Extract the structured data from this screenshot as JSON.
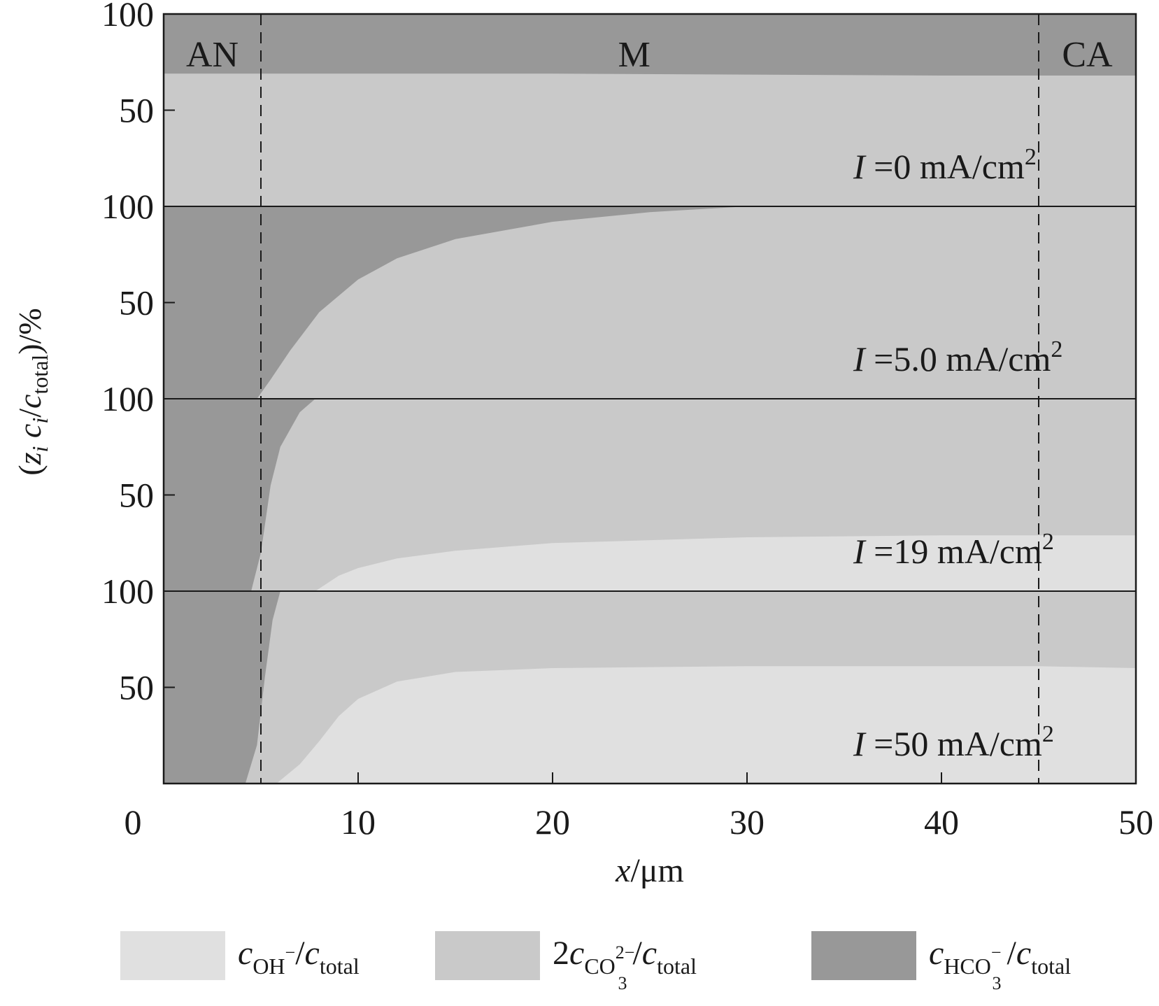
{
  "chart_data": {
    "type": "area",
    "stacked": true,
    "panels_stacked_vertically": true,
    "xlabel": "x/μm",
    "ylabel": "(z_i c_i/c_total)/%",
    "xlim": [
      0,
      50
    ],
    "ylim_per_panel": [
      0,
      100
    ],
    "x_ticks": [
      0,
      10,
      20,
      30,
      40,
      50
    ],
    "y_ticks_per_panel": [
      50,
      100
    ],
    "region_labels": [
      "AN",
      "M",
      "CA"
    ],
    "region_boundaries": [
      5,
      45
    ],
    "legend": {
      "placement": "bottom",
      "entries": [
        {
          "label": "c_OH−/c_total",
          "color": "#e0e0e0"
        },
        {
          "label": "2c_CO3^2−/c_total",
          "color": "#c9c9c9"
        },
        {
          "label": "c_HCO3^−/c_total",
          "color": "#989898"
        }
      ]
    },
    "colors": {
      "oh": "#e0e0e0",
      "co3": "#c9c9c9",
      "hco3": "#989898",
      "line": "#1a1a1a"
    },
    "note": "Each panel: OH− fills from 0 up to the lower curve, CO3 2− from the lower curve to the upper curve, HCO3− from the upper curve to 100.",
    "panels": [
      {
        "label": "I =0 mA/cm²",
        "lower": {
          "x": [
            0,
            50
          ],
          "y": [
            0,
            0
          ]
        },
        "upper": {
          "x": [
            0,
            5,
            10,
            20,
            30,
            40,
            45,
            50
          ],
          "y": [
            69,
            69,
            69,
            69,
            68.5,
            68,
            68,
            68
          ]
        }
      },
      {
        "label": "I =5.0 mA/cm²",
        "lower": {
          "x": [
            0,
            50
          ],
          "y": [
            0,
            0
          ]
        },
        "upper": {
          "x": [
            0,
            4.8,
            5.5,
            6.5,
            8,
            10,
            12,
            15,
            20,
            25,
            30,
            50
          ],
          "y": [
            0,
            0,
            10,
            25,
            45,
            62,
            73,
            83,
            92,
            97,
            100,
            100
          ]
        }
      },
      {
        "label": "I =19 mA/cm²",
        "lower": {
          "x": [
            0,
            7.8,
            9,
            10,
            12,
            15,
            20,
            30,
            40,
            45,
            50
          ],
          "y": [
            0,
            0,
            8,
            12,
            17,
            21,
            25,
            28,
            29,
            29,
            29
          ]
        },
        "upper": {
          "x": [
            0,
            4.5,
            5,
            5.5,
            6,
            7,
            7.8,
            50
          ],
          "y": [
            0,
            0,
            20,
            55,
            75,
            93,
            100,
            100
          ]
        }
      },
      {
        "label": "I =50 mA/cm²",
        "lower": {
          "x": [
            0,
            5.8,
            7,
            8,
            9,
            10,
            12,
            15,
            20,
            30,
            40,
            45,
            50
          ],
          "y": [
            0,
            0,
            10,
            22,
            35,
            44,
            53,
            58,
            60,
            61,
            61,
            61,
            60
          ]
        },
        "upper": {
          "x": [
            0,
            4.2,
            4.8,
            5.2,
            5.6,
            6,
            50
          ],
          "y": [
            0,
            0,
            20,
            55,
            85,
            100,
            100
          ]
        }
      }
    ]
  }
}
